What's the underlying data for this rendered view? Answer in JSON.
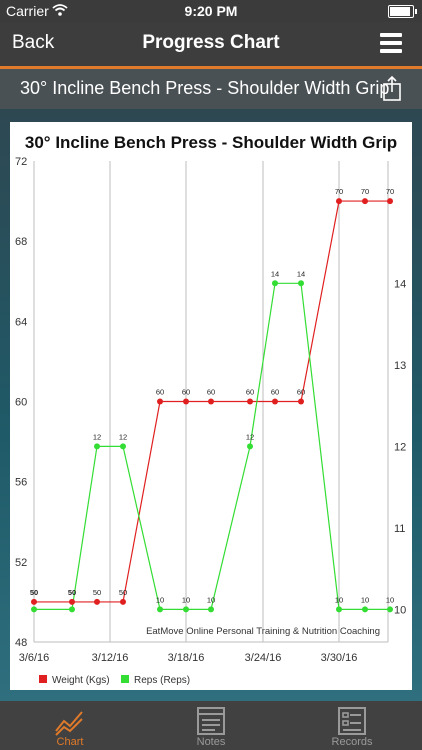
{
  "status_bar": {
    "carrier": "Carrier",
    "time": "9:20 PM"
  },
  "nav": {
    "back_label": "Back",
    "title": "Progress Chart"
  },
  "exercise": {
    "title": "30° Incline Bench Press - Shoulder Width Grip"
  },
  "colors": {
    "accent": "#e07a2a",
    "weight": "#e02020",
    "reps": "#33dd33"
  },
  "chart_data": {
    "type": "line",
    "title": "30° Incline Bench Press - Shoulder Width Grip",
    "watermark": "EatMove Online Personal Training & Nutrition Coaching",
    "x_ticks": [
      "3/6/16",
      "3/12/16",
      "3/18/16",
      "3/24/16",
      "3/30/16"
    ],
    "x": [
      "3/6/16",
      "3/8/16",
      "3/10/16",
      "3/12/16",
      "3/15/16",
      "3/17/16",
      "3/19/16",
      "3/22/16",
      "3/24/16",
      "3/26/16",
      "3/30/16",
      "3/32/16",
      "3/34/16"
    ],
    "y_left_ticks": [
      "72",
      "68",
      "64",
      "60",
      "56",
      "52",
      "48"
    ],
    "y_left_range": [
      48,
      72
    ],
    "y_right_ticks": [
      "14",
      "13",
      "12",
      "11",
      "10"
    ],
    "y_right_range": [
      9.6,
      15.5
    ],
    "series": [
      {
        "name": "Weight (Kgs)",
        "axis": "left",
        "values": [
          50,
          50,
          50,
          50,
          60,
          60,
          60,
          60,
          60,
          60,
          70,
          70,
          70
        ],
        "labels": [
          "50",
          "50",
          "50",
          "50",
          "60",
          "60",
          "60",
          "60",
          "60",
          "60",
          "70",
          "70",
          "70"
        ]
      },
      {
        "name": "Reps (Reps)",
        "axis": "right",
        "values": [
          10,
          10,
          12,
          12,
          10,
          10,
          10,
          12,
          14,
          14,
          10,
          10,
          10
        ],
        "labels": [
          "",
          "",
          "12",
          "12",
          "10",
          "10",
          "10",
          "12",
          "14",
          "14",
          "10",
          "10",
          "10"
        ]
      }
    ],
    "legend": "bottom-left"
  },
  "tabs": [
    {
      "label": "Chart",
      "icon": "chart-icon",
      "active": true
    },
    {
      "label": "Notes",
      "icon": "notes-icon",
      "active": false
    },
    {
      "label": "Records",
      "icon": "records-icon",
      "active": false
    }
  ]
}
